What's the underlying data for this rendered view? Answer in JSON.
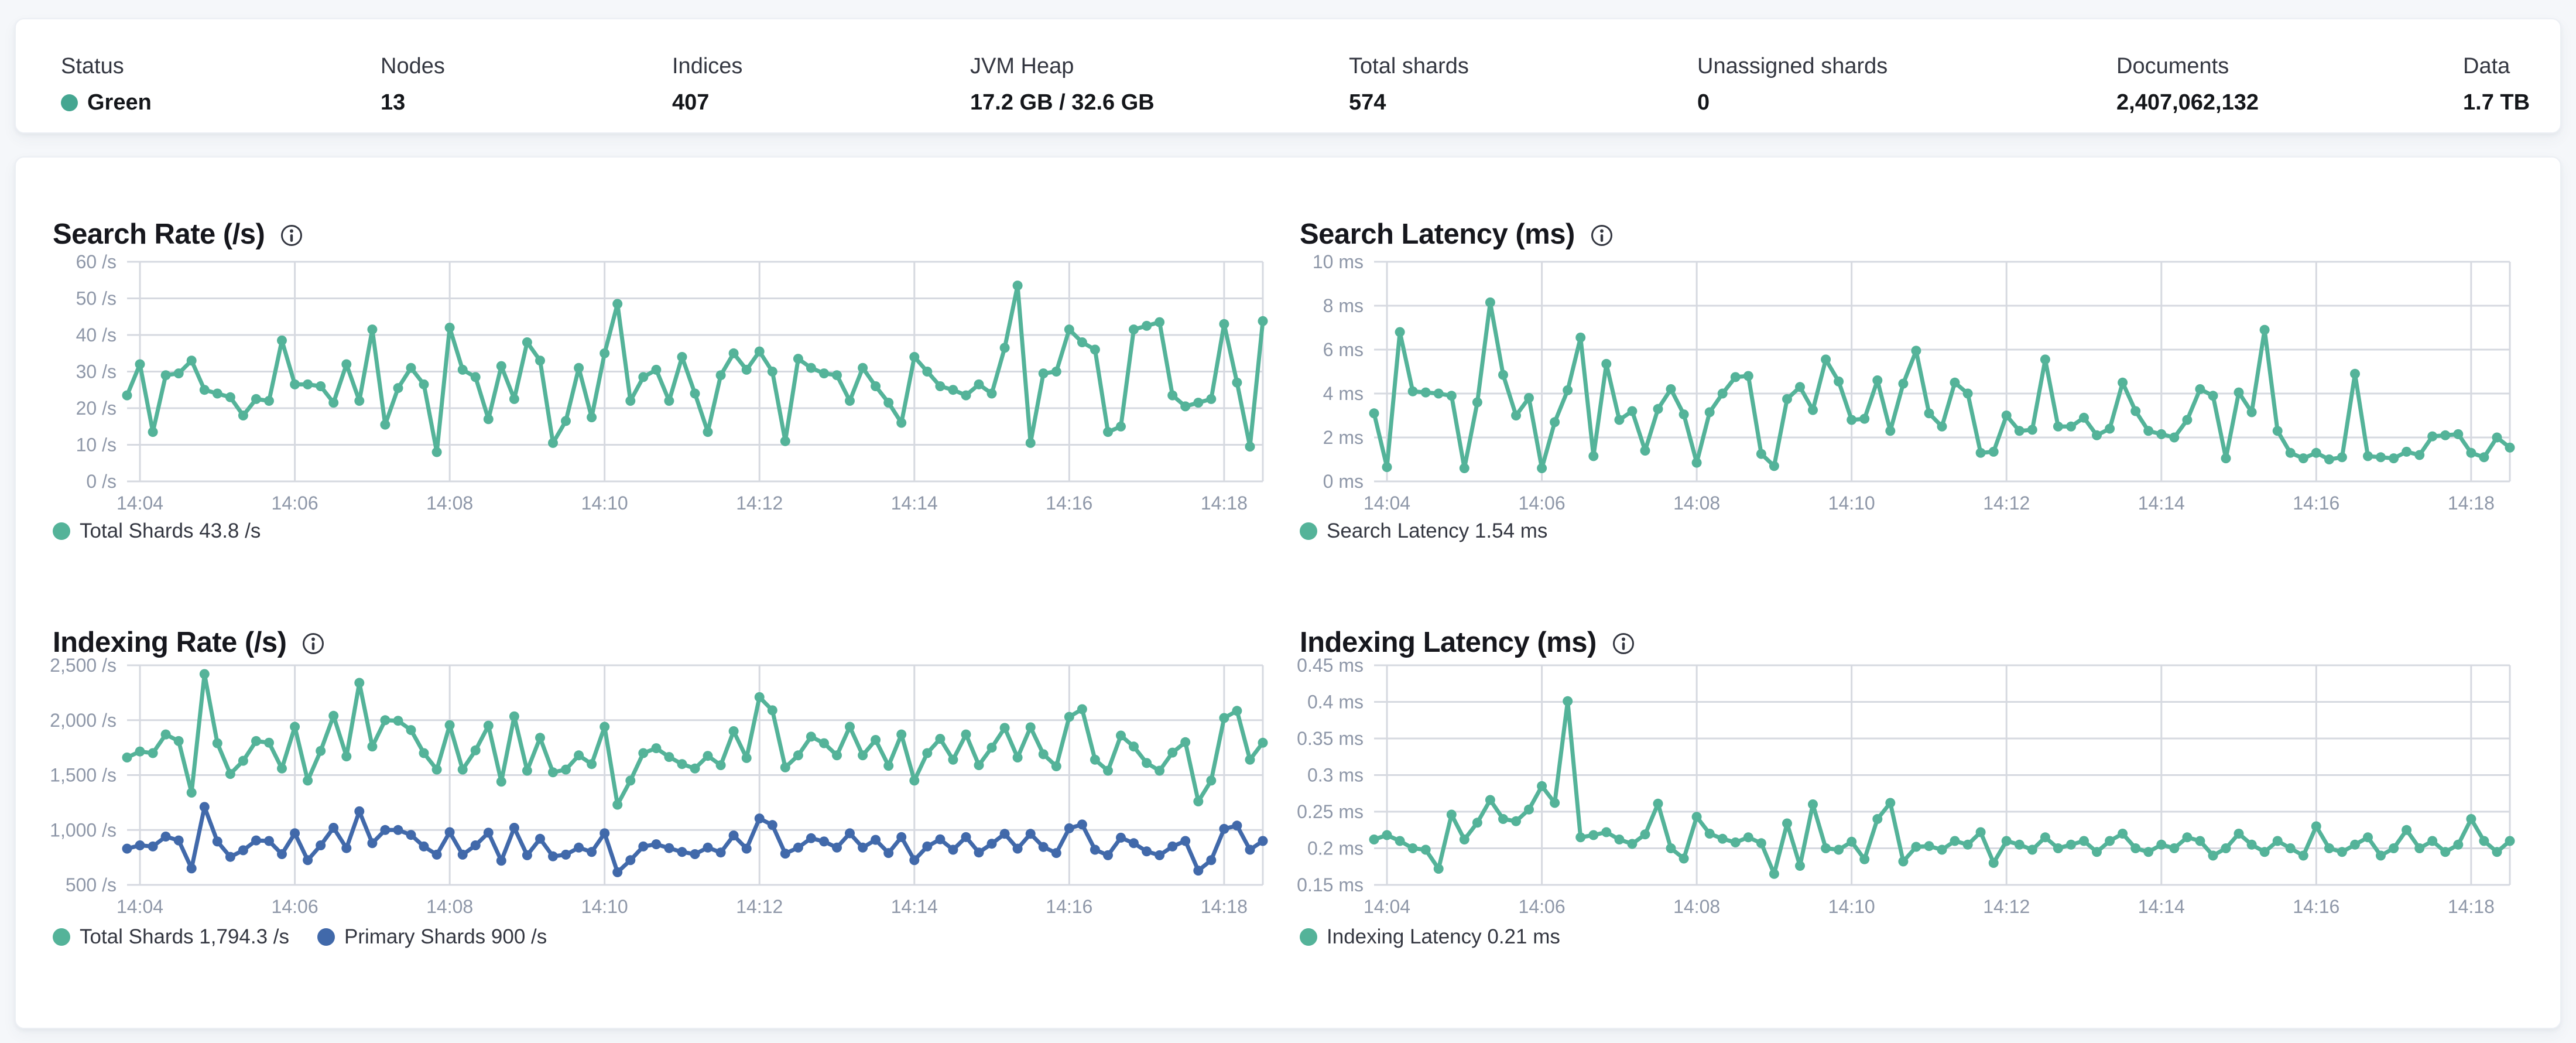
{
  "status_bar": {
    "items": [
      {
        "label": "Status",
        "value": "Green",
        "type": "status",
        "dot_color": "#45a691"
      },
      {
        "label": "Nodes",
        "value": "13"
      },
      {
        "label": "Indices",
        "value": "407"
      },
      {
        "label": "JVM Heap",
        "value": "17.2 GB / 32.6 GB"
      },
      {
        "label": "Total shards",
        "value": "574"
      },
      {
        "label": "Unassigned shards",
        "value": "0"
      },
      {
        "label": "Documents",
        "value": "2,407,062,132"
      },
      {
        "label": "Data",
        "value": "1.7 TB"
      }
    ]
  },
  "colors": {
    "teal": "#54b399",
    "blue": "#4169aa",
    "status_green": "#45a691"
  },
  "chart_data": [
    {
      "id": "search-rate",
      "type": "line",
      "title": "Search Rate (/s)",
      "x_tick_labels": [
        "14:04",
        "14:06",
        "14:08",
        "14:10",
        "14:12",
        "14:14",
        "14:16",
        "14:18"
      ],
      "y_axis": {
        "min": 0,
        "max": 60,
        "tick_values": [
          0,
          10,
          20,
          30,
          40,
          50,
          60
        ],
        "tick_labels": [
          "0 /s",
          "10 /s",
          "20 /s",
          "30 /s",
          "40 /s",
          "50 /s",
          "60 /s"
        ]
      },
      "series": [
        {
          "name": "Total Shards",
          "legend_label": "Total Shards 43.8 /s",
          "current_value": "43.8 /s",
          "color_key": "teal",
          "values": [
            23.5,
            32,
            13.5,
            29,
            29.5,
            33,
            25,
            24,
            23,
            18,
            22.5,
            22,
            38.5,
            26.5,
            26.5,
            26,
            21.5,
            32,
            22,
            41.5,
            15.5,
            25.5,
            31,
            26.5,
            8,
            42,
            30.5,
            28.5,
            17,
            31.5,
            22.5,
            38,
            33,
            10.5,
            16.5,
            31,
            17.5,
            35,
            48.5,
            22,
            28.5,
            30.5,
            22,
            34,
            24,
            13.5,
            29,
            35,
            30.5,
            35.5,
            30,
            11,
            33.5,
            31,
            29.5,
            29,
            22,
            31,
            26,
            21.5,
            16,
            34,
            30,
            26,
            25,
            23.5,
            26.5,
            24,
            36.5,
            53.5,
            10.5,
            29.5,
            30,
            41.5,
            38,
            36,
            13.5,
            15,
            41.5,
            42.5,
            43.5,
            23.5,
            20.5,
            21.5,
            22.5,
            43,
            27,
            9.5,
            43.8
          ]
        }
      ]
    },
    {
      "id": "search-latency",
      "type": "line",
      "title": "Search Latency (ms)",
      "x_tick_labels": [
        "14:04",
        "14:06",
        "14:08",
        "14:10",
        "14:12",
        "14:14",
        "14:16",
        "14:18"
      ],
      "y_axis": {
        "min": 0,
        "max": 10,
        "tick_values": [
          0,
          2,
          4,
          6,
          8,
          10
        ],
        "tick_labels": [
          "0 ms",
          "2 ms",
          "4 ms",
          "6 ms",
          "8 ms",
          "10 ms"
        ]
      },
      "series": [
        {
          "name": "Search Latency",
          "legend_label": "Search Latency 1.54 ms",
          "current_value": "1.54 ms",
          "color_key": "teal",
          "values": [
            3.1,
            0.65,
            6.8,
            4.1,
            4.05,
            4,
            3.9,
            0.6,
            3.6,
            8.15,
            4.85,
            3,
            3.8,
            0.6,
            2.7,
            4.15,
            6.55,
            1.15,
            5.35,
            2.8,
            3.2,
            1.4,
            3.3,
            4.2,
            3.05,
            0.85,
            3.15,
            4,
            4.75,
            4.8,
            1.25,
            0.7,
            3.75,
            4.3,
            3.25,
            5.55,
            4.55,
            2.8,
            2.85,
            4.6,
            2.3,
            4.45,
            5.95,
            3.1,
            2.5,
            4.5,
            4,
            1.3,
            1.35,
            3,
            2.3,
            2.35,
            5.55,
            2.5,
            2.5,
            2.9,
            2.1,
            2.4,
            4.5,
            3.2,
            2.3,
            2.15,
            2,
            2.8,
            4.2,
            3.9,
            1.05,
            4.05,
            3.15,
            6.9,
            2.3,
            1.3,
            1.05,
            1.3,
            1,
            1.1,
            4.9,
            1.15,
            1.1,
            1.05,
            1.35,
            1.2,
            2.05,
            2.1,
            2.15,
            1.3,
            1.1,
            2,
            1.54
          ]
        }
      ]
    },
    {
      "id": "indexing-rate",
      "type": "line",
      "title": "Indexing Rate (/s)",
      "x_tick_labels": [
        "14:04",
        "14:06",
        "14:08",
        "14:10",
        "14:12",
        "14:14",
        "14:16",
        "14:18"
      ],
      "y_axis": {
        "min": 500,
        "max": 2500,
        "tick_values": [
          500,
          1000,
          1500,
          2000,
          2500
        ],
        "tick_labels": [
          "500 /s",
          "1,000 /s",
          "1,500 /s",
          "2,000 /s",
          "2,500 /s"
        ]
      },
      "series": [
        {
          "name": "Total Shards",
          "legend_label": "Total Shards 1,794.3 /s",
          "current_value": "1,794.3 /s",
          "color_key": "teal",
          "values": [
            1660,
            1715,
            1700,
            1870,
            1810,
            1340,
            2420,
            1790,
            1510,
            1630,
            1810,
            1795,
            1560,
            1940,
            1450,
            1720,
            2040,
            1670,
            2340,
            1760,
            2000,
            1995,
            1910,
            1700,
            1550,
            1955,
            1550,
            1725,
            1950,
            1440,
            2035,
            1540,
            1840,
            1525,
            1550,
            1680,
            1600,
            1940,
            1230,
            1450,
            1700,
            1745,
            1665,
            1600,
            1560,
            1675,
            1590,
            1900,
            1655,
            2210,
            2090,
            1570,
            1680,
            1850,
            1790,
            1680,
            1940,
            1680,
            1820,
            1585,
            1870,
            1450,
            1700,
            1830,
            1640,
            1870,
            1590,
            1750,
            1930,
            1660,
            1935,
            1690,
            1580,
            2030,
            2100,
            1640,
            1540,
            1860,
            1760,
            1610,
            1540,
            1705,
            1800,
            1260,
            1450,
            2020,
            2085,
            1640,
            1794.3
          ]
        },
        {
          "name": "Primary Shards",
          "legend_label": "Primary Shards 900 /s",
          "current_value": "900 /s",
          "color_key": "blue",
          "values": [
            830,
            860,
            850,
            940,
            905,
            650,
            1210,
            895,
            755,
            815,
            905,
            900,
            780,
            970,
            725,
            860,
            1020,
            835,
            1170,
            880,
            1000,
            1000,
            955,
            850,
            775,
            980,
            775,
            860,
            975,
            720,
            1020,
            770,
            920,
            760,
            775,
            840,
            800,
            970,
            615,
            725,
            850,
            870,
            835,
            800,
            780,
            840,
            795,
            950,
            830,
            1105,
            1045,
            785,
            840,
            925,
            895,
            840,
            970,
            840,
            910,
            790,
            935,
            725,
            850,
            915,
            820,
            935,
            795,
            875,
            965,
            830,
            965,
            845,
            790,
            1015,
            1050,
            820,
            770,
            930,
            880,
            805,
            770,
            850,
            900,
            630,
            725,
            1010,
            1040,
            820,
            900
          ]
        }
      ]
    },
    {
      "id": "indexing-latency",
      "type": "line",
      "title": "Indexing Latency (ms)",
      "x_tick_labels": [
        "14:04",
        "14:06",
        "14:08",
        "14:10",
        "14:12",
        "14:14",
        "14:16",
        "14:18"
      ],
      "y_axis": {
        "min": 0.15,
        "max": 0.45,
        "tick_values": [
          0.15,
          0.2,
          0.25,
          0.3,
          0.35,
          0.4,
          0.45
        ],
        "tick_labels": [
          "0.15 ms",
          "0.2 ms",
          "0.25 ms",
          "0.3 ms",
          "0.35 ms",
          "0.4 ms",
          "0.45 ms"
        ]
      },
      "series": [
        {
          "name": "Indexing Latency",
          "legend_label": "Indexing Latency 0.21 ms",
          "current_value": "0.21 ms",
          "color_key": "teal",
          "values": [
            0.212,
            0.218,
            0.21,
            0.2,
            0.198,
            0.172,
            0.246,
            0.212,
            0.235,
            0.266,
            0.24,
            0.237,
            0.253,
            0.285,
            0.262,
            0.401,
            0.215,
            0.218,
            0.222,
            0.212,
            0.206,
            0.219,
            0.261,
            0.2,
            0.186,
            0.243,
            0.22,
            0.213,
            0.208,
            0.215,
            0.207,
            0.165,
            0.234,
            0.176,
            0.26,
            0.2,
            0.198,
            0.209,
            0.185,
            0.24,
            0.262,
            0.182,
            0.202,
            0.203,
            0.198,
            0.21,
            0.205,
            0.222,
            0.18,
            0.21,
            0.205,
            0.198,
            0.215,
            0.2,
            0.205,
            0.21,
            0.195,
            0.21,
            0.22,
            0.2,
            0.195,
            0.205,
            0.2,
            0.215,
            0.21,
            0.19,
            0.2,
            0.22,
            0.205,
            0.195,
            0.21,
            0.2,
            0.19,
            0.23,
            0.2,
            0.195,
            0.205,
            0.215,
            0.19,
            0.2,
            0.225,
            0.2,
            0.21,
            0.195,
            0.205,
            0.24,
            0.21,
            0.195,
            0.21
          ]
        }
      ]
    }
  ]
}
